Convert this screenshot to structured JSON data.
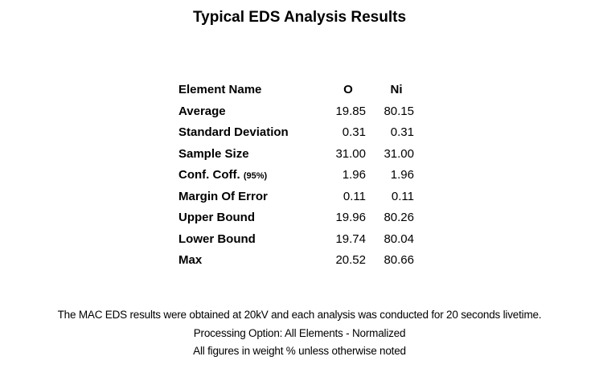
{
  "title": "Typical EDS Analysis Results",
  "table": {
    "header": [
      "Element Name",
      "O",
      "Ni"
    ],
    "rows": [
      {
        "label": "Average",
        "values": [
          "19.85",
          "80.15"
        ]
      },
      {
        "label": "Standard Deviation",
        "values": [
          "0.31",
          "0.31"
        ]
      },
      {
        "label": "Sample Size",
        "values": [
          "31.00",
          "31.00"
        ]
      },
      {
        "label": "Conf. Coff.",
        "note": "(95%)",
        "values": [
          "1.96",
          "1.96"
        ]
      },
      {
        "label": "Margin Of Error",
        "values": [
          "0.11",
          "0.11"
        ]
      },
      {
        "label": "Upper Bound",
        "values": [
          "19.96",
          "80.26"
        ]
      },
      {
        "label": "Lower Bound",
        "values": [
          "19.74",
          "80.04"
        ]
      },
      {
        "label": "Max",
        "values": [
          "20.52",
          "80.66"
        ]
      }
    ]
  },
  "footer": [
    "The MAC EDS results were obtained at 20kV and each analysis was conducted for 20 seconds livetime.",
    "Processing Option: All Elements - Normalized",
    "All figures in weight % unless otherwise noted"
  ]
}
